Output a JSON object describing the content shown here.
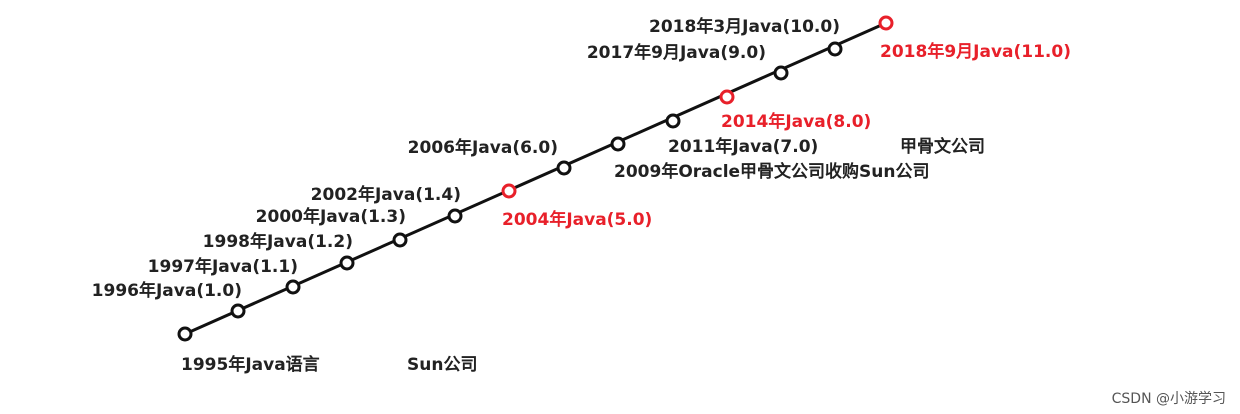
{
  "colors": {
    "line": "#111111",
    "normal": "#111111",
    "highlight": "#e8202a"
  },
  "milestones": [
    {
      "id": "m1995",
      "label": "1995年Java语言",
      "highlight": false
    },
    {
      "id": "m1996",
      "label": "1996年Java(1.0)",
      "highlight": false
    },
    {
      "id": "m1997",
      "label": "1997年Java(1.1)",
      "highlight": false
    },
    {
      "id": "m1998",
      "label": "1998年Java(1.2)",
      "highlight": false
    },
    {
      "id": "m2000",
      "label": "2000年Java(1.3)",
      "highlight": false
    },
    {
      "id": "m2002",
      "label": "2002年Java(1.4)",
      "highlight": false
    },
    {
      "id": "m2004",
      "label": "2004年Java(5.0)",
      "highlight": true
    },
    {
      "id": "m2006",
      "label": "2006年Java(6.0)",
      "highlight": false
    },
    {
      "id": "m2009",
      "label": "2009年Oracle甲骨文公司收购Sun公司",
      "highlight": false
    },
    {
      "id": "m2011",
      "label": "2011年Java(7.0)",
      "highlight": false
    },
    {
      "id": "m2014",
      "label": "2014年Java(8.0)",
      "highlight": true
    },
    {
      "id": "m2017",
      "label": "2017年9月Java(9.0)",
      "highlight": false
    },
    {
      "id": "m2018a",
      "label": "2018年3月Java(10.0)",
      "highlight": false
    },
    {
      "id": "m2018b",
      "label": "2018年9月Java(11.0)",
      "highlight": true
    }
  ],
  "companies": [
    {
      "id": "sun",
      "label": "Sun公司"
    },
    {
      "id": "oracle",
      "label": "甲骨文公司"
    }
  ],
  "watermark": "CSDN @小游学习"
}
